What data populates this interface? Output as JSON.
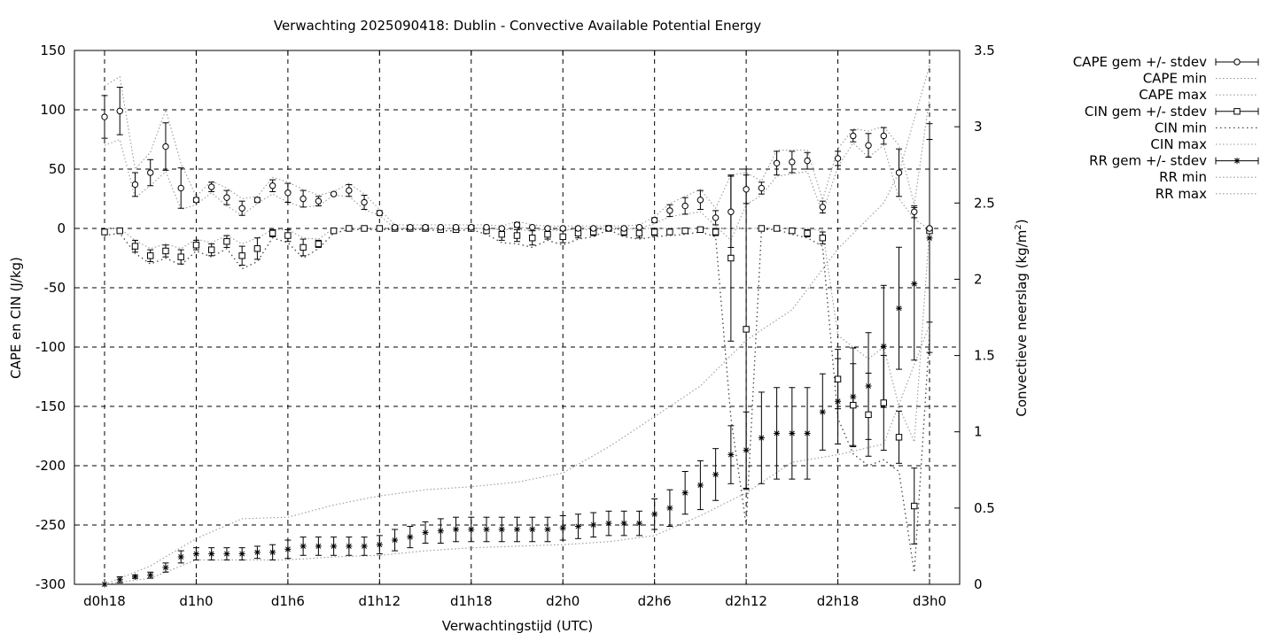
{
  "chart_data": {
    "type": "line",
    "title": "Verwachting 2025090418: Dublin - Convective Available Potential Energy",
    "xlabel": "Verwachtingstijd (UTC)",
    "ylabel": "CAPE en CIN (J/kg)",
    "y2label": "Convectieve neerslag (kg/m",
    "y2label_sup": "2",
    "y2label_end": ")",
    "x_unit": "hours since d0h18",
    "xlim": [
      -1,
      55
    ],
    "ylim": [
      -300,
      150
    ],
    "y2lim": [
      0,
      3.5
    ],
    "grid": true,
    "legend_position": "outside-right",
    "x_ticks": [
      {
        "value": 0,
        "label": "d0h18"
      },
      {
        "value": 6,
        "label": "d1h0"
      },
      {
        "value": 12,
        "label": "d1h6"
      },
      {
        "value": 18,
        "label": "d1h12"
      },
      {
        "value": 24,
        "label": "d1h18"
      },
      {
        "value": 30,
        "label": "d2h0"
      },
      {
        "value": 36,
        "label": "d2h6"
      },
      {
        "value": 42,
        "label": "d2h12"
      },
      {
        "value": 48,
        "label": "d2h18"
      },
      {
        "value": 54,
        "label": "d3h0"
      }
    ],
    "y_ticks": [
      "150",
      "100",
      "50",
      "0",
      "-50",
      "-100",
      "-150",
      "-200",
      "-250",
      "-300"
    ],
    "y2_ticks": [
      "3.5",
      "3",
      "2.5",
      "2",
      "1.5",
      "1",
      "0.5",
      "0"
    ],
    "legend": [
      {
        "label": "CAPE gem +/- stdev",
        "marker": "circle",
        "style": "errorbar"
      },
      {
        "label": "CAPE min",
        "style": "dotted"
      },
      {
        "label": "CAPE max",
        "style": "dotted"
      },
      {
        "label": "CIN gem +/- stdev",
        "marker": "square",
        "style": "errorbar"
      },
      {
        "label": "CIN min",
        "style": "dotted-dark"
      },
      {
        "label": "CIN max",
        "style": "dotted"
      },
      {
        "label": "RR gem +/- stdev",
        "marker": "star",
        "style": "errorbar"
      },
      {
        "label": "RR min",
        "style": "dotted"
      },
      {
        "label": "RR max",
        "style": "dotted"
      }
    ],
    "series": [
      {
        "name": "CAPE gem +/- stdev",
        "axis": "y1",
        "marker": "circle",
        "x": [
          0,
          1,
          2,
          3,
          4,
          5,
          6,
          7,
          8,
          9,
          10,
          11,
          12,
          13,
          14,
          15,
          16,
          17,
          18,
          19,
          20,
          21,
          22,
          23,
          24,
          25,
          26,
          27,
          28,
          29,
          30,
          31,
          32,
          33,
          34,
          35,
          36,
          37,
          38,
          39,
          40,
          41,
          42,
          43,
          44,
          45,
          46,
          47,
          48,
          49,
          50,
          51,
          52,
          53,
          54
        ],
        "y": [
          94,
          99,
          37,
          47,
          69,
          34,
          24,
          35,
          26,
          17,
          24,
          36,
          30,
          25,
          23,
          29,
          32,
          22,
          13,
          1,
          1,
          1,
          1,
          1,
          1,
          1,
          0,
          3,
          1,
          0,
          0,
          0,
          0,
          0,
          0,
          1,
          7,
          15,
          19,
          24,
          9,
          14,
          33,
          34,
          55,
          56,
          57,
          18,
          59,
          78,
          70,
          78,
          47,
          14,
          0
        ],
        "err": [
          18,
          20,
          10,
          11,
          20,
          17,
          2,
          4,
          6,
          6,
          2,
          5,
          8,
          7,
          4,
          1,
          5,
          6,
          2,
          1,
          1,
          1,
          1,
          1,
          1,
          1,
          1,
          2,
          1,
          1,
          1,
          1,
          1,
          1,
          1,
          1,
          2,
          5,
          7,
          8,
          6,
          30,
          12,
          5,
          10,
          9,
          7,
          5,
          6,
          5,
          10,
          7,
          20,
          5,
          1
        ]
      },
      {
        "name": "CIN gem +/- stdev",
        "axis": "y1",
        "marker": "square",
        "x": [
          0,
          1,
          2,
          3,
          4,
          5,
          6,
          7,
          8,
          9,
          10,
          11,
          12,
          13,
          14,
          15,
          16,
          17,
          18,
          19,
          20,
          21,
          22,
          23,
          24,
          25,
          26,
          27,
          28,
          29,
          30,
          31,
          32,
          33,
          34,
          35,
          36,
          37,
          38,
          39,
          40,
          41,
          42,
          43,
          44,
          45,
          46,
          47,
          48,
          49,
          50,
          51,
          52,
          53,
          54
        ],
        "y": [
          -3,
          -2,
          -15,
          -23,
          -19,
          -24,
          -14,
          -18,
          -11,
          -23,
          -17,
          -4,
          -6,
          -16,
          -13,
          -2,
          0,
          0,
          0,
          0,
          0,
          0,
          -1,
          -1,
          0,
          -2,
          -5,
          -6,
          -8,
          -5,
          -7,
          -4,
          -3,
          0,
          -3,
          -4,
          -3,
          -3,
          -2,
          -1,
          -3,
          -25,
          -85,
          0,
          0,
          -2,
          -4,
          -8,
          -127,
          -149,
          -157,
          -147,
          -176,
          -234,
          -2
        ],
        "err": [
          2,
          1,
          5,
          5,
          5,
          6,
          4,
          5,
          5,
          8,
          9,
          3,
          5,
          7,
          3,
          1,
          1,
          1,
          1,
          1,
          1,
          1,
          1,
          1,
          1,
          2,
          5,
          5,
          6,
          4,
          5,
          4,
          3,
          1,
          3,
          4,
          3,
          2,
          2,
          1,
          3,
          70,
          135,
          1,
          1,
          2,
          3,
          5,
          25,
          35,
          35,
          40,
          22,
          32,
          77
        ]
      },
      {
        "name": "RR gem +/- stdev",
        "axis": "y2",
        "marker": "star",
        "x": [
          0,
          1,
          2,
          3,
          4,
          5,
          6,
          7,
          8,
          9,
          10,
          11,
          12,
          13,
          14,
          15,
          16,
          17,
          18,
          19,
          20,
          21,
          22,
          23,
          24,
          25,
          26,
          27,
          28,
          29,
          30,
          31,
          32,
          33,
          34,
          35,
          36,
          37,
          38,
          39,
          40,
          41,
          42,
          43,
          44,
          45,
          46,
          47,
          48,
          49,
          50,
          51,
          52,
          53,
          54
        ],
        "y": [
          0.0,
          0.03,
          0.05,
          0.06,
          0.11,
          0.18,
          0.2,
          0.2,
          0.2,
          0.2,
          0.21,
          0.21,
          0.23,
          0.25,
          0.25,
          0.25,
          0.25,
          0.25,
          0.26,
          0.29,
          0.31,
          0.34,
          0.35,
          0.36,
          0.36,
          0.36,
          0.36,
          0.36,
          0.36,
          0.36,
          0.37,
          0.38,
          0.39,
          0.4,
          0.4,
          0.4,
          0.46,
          0.5,
          0.6,
          0.65,
          0.72,
          0.85,
          0.88,
          0.96,
          0.99,
          0.99,
          0.99,
          1.13,
          1.2,
          1.23,
          1.3,
          1.56,
          1.81,
          1.97,
          2.27
        ],
        "err": [
          0.0,
          0.02,
          0.01,
          0.02,
          0.03,
          0.04,
          0.04,
          0.04,
          0.04,
          0.04,
          0.04,
          0.05,
          0.06,
          0.06,
          0.06,
          0.06,
          0.06,
          0.06,
          0.06,
          0.07,
          0.07,
          0.07,
          0.08,
          0.08,
          0.08,
          0.08,
          0.08,
          0.08,
          0.08,
          0.08,
          0.08,
          0.08,
          0.08,
          0.08,
          0.08,
          0.08,
          0.1,
          0.12,
          0.14,
          0.16,
          0.17,
          0.19,
          0.25,
          0.3,
          0.3,
          0.3,
          0.3,
          0.25,
          0.28,
          0.32,
          0.35,
          0.4,
          0.4,
          0.5,
          0.75
        ]
      },
      {
        "name": "CAPE min",
        "axis": "y1",
        "x": [
          0,
          1,
          2,
          3,
          4,
          5,
          6,
          7,
          8,
          9,
          10,
          11,
          12,
          13,
          14,
          15,
          16,
          17,
          18,
          19,
          20,
          21,
          22,
          23,
          24,
          25,
          26,
          27,
          28,
          29,
          30,
          31,
          32,
          33,
          34,
          35,
          36,
          37,
          38,
          39,
          40,
          41,
          42,
          43,
          44,
          45,
          46,
          47,
          48,
          49,
          50,
          51,
          52,
          53,
          54
        ],
        "y": [
          70,
          75,
          26,
          36,
          48,
          16,
          20,
          30,
          19,
          11,
          21,
          29,
          22,
          18,
          19,
          28,
          27,
          16,
          11,
          0,
          0,
          0,
          0,
          0,
          0,
          0,
          -1,
          1,
          0,
          -1,
          -1,
          -1,
          -1,
          -1,
          -1,
          0,
          4,
          10,
          12,
          14,
          2,
          -10,
          20,
          28,
          44,
          46,
          48,
          13,
          52,
          72,
          60,
          70,
          25,
          8,
          -1
        ]
      },
      {
        "name": "CAPE max",
        "axis": "y1",
        "x": [
          0,
          1,
          2,
          3,
          4,
          5,
          6,
          7,
          8,
          9,
          10,
          11,
          12,
          13,
          14,
          15,
          16,
          17,
          18,
          19,
          20,
          21,
          22,
          23,
          24,
          25,
          26,
          27,
          28,
          29,
          30,
          31,
          32,
          33,
          34,
          35,
          36,
          37,
          38,
          39,
          40,
          41,
          42,
          43,
          44,
          45,
          46,
          47,
          48,
          49,
          50,
          51,
          52,
          53,
          54
        ],
        "y": [
          120,
          128,
          50,
          64,
          100,
          55,
          27,
          40,
          34,
          25,
          27,
          43,
          39,
          33,
          28,
          31,
          38,
          29,
          16,
          3,
          3,
          3,
          3,
          3,
          3,
          3,
          2,
          6,
          3,
          2,
          2,
          2,
          2,
          2,
          2,
          3,
          10,
          21,
          27,
          33,
          17,
          45,
          47,
          40,
          66,
          66,
          66,
          24,
          67,
          84,
          82,
          86,
          70,
          20,
          110
        ]
      },
      {
        "name": "CIN min",
        "axis": "y1",
        "x": [
          0,
          1,
          2,
          3,
          4,
          5,
          6,
          7,
          8,
          9,
          10,
          11,
          12,
          13,
          14,
          15,
          16,
          17,
          18,
          19,
          20,
          21,
          22,
          23,
          24,
          25,
          26,
          27,
          28,
          29,
          30,
          31,
          32,
          33,
          34,
          35,
          36,
          37,
          38,
          39,
          40,
          41,
          42,
          43,
          44,
          45,
          46,
          47,
          48,
          49,
          50,
          51,
          52,
          53,
          54
        ],
        "y": [
          -6,
          -4,
          -21,
          -30,
          -25,
          -31,
          -19,
          -24,
          -17,
          -34,
          -28,
          -8,
          -12,
          -25,
          -17,
          -4,
          -1,
          -1,
          -1,
          -1,
          -1,
          -1,
          -2,
          -2,
          -1,
          -5,
          -12,
          -13,
          -16,
          -10,
          -14,
          -9,
          -7,
          -1,
          -7,
          -9,
          -7,
          -6,
          -5,
          -3,
          -7,
          -160,
          -250,
          -1,
          -1,
          -5,
          -8,
          -15,
          -160,
          -190,
          -200,
          -195,
          -205,
          -290,
          -90
        ]
      },
      {
        "name": "CIN max",
        "axis": "y1",
        "x": [
          0,
          1,
          2,
          3,
          4,
          5,
          6,
          7,
          8,
          9,
          10,
          11,
          12,
          13,
          14,
          15,
          16,
          17,
          18,
          19,
          20,
          21,
          22,
          23,
          24,
          25,
          26,
          27,
          28,
          29,
          30,
          31,
          32,
          33,
          34,
          35,
          36,
          37,
          38,
          39,
          40,
          41,
          42,
          43,
          44,
          45,
          46,
          47,
          48,
          49,
          50,
          51,
          52,
          53,
          54
        ],
        "y": [
          0,
          0,
          -10,
          -17,
          -13,
          -17,
          -9,
          -12,
          -6,
          -13,
          -8,
          -1,
          -1,
          -8,
          -9,
          0,
          0,
          0,
          0,
          0,
          0,
          0,
          0,
          0,
          0,
          0,
          -1,
          -1,
          -2,
          -1,
          -2,
          0,
          0,
          0,
          0,
          0,
          0,
          0,
          0,
          0,
          0,
          0,
          0,
          0,
          0,
          0,
          0,
          -2,
          -90,
          -100,
          -110,
          -100,
          -150,
          -180,
          0
        ]
      },
      {
        "name": "RR min",
        "axis": "y2",
        "x": [
          0,
          3,
          6,
          9,
          12,
          15,
          18,
          21,
          24,
          27,
          30,
          33,
          36,
          39,
          42,
          45,
          48,
          51,
          54
        ],
        "y": [
          0.0,
          0.04,
          0.16,
          0.16,
          0.16,
          0.18,
          0.19,
          0.22,
          0.24,
          0.25,
          0.26,
          0.28,
          0.32,
          0.45,
          0.6,
          0.8,
          0.85,
          0.92,
          1.7
        ]
      },
      {
        "name": "RR max",
        "axis": "y2",
        "x": [
          0,
          3,
          6,
          9,
          12,
          15,
          18,
          21,
          24,
          27,
          30,
          33,
          36,
          39,
          42,
          45,
          48,
          51,
          52,
          54
        ],
        "y": [
          0.0,
          0.12,
          0.3,
          0.43,
          0.44,
          0.52,
          0.58,
          0.62,
          0.64,
          0.67,
          0.73,
          0.9,
          1.1,
          1.3,
          1.6,
          1.8,
          2.2,
          2.5,
          2.7,
          3.4
        ]
      }
    ]
  }
}
